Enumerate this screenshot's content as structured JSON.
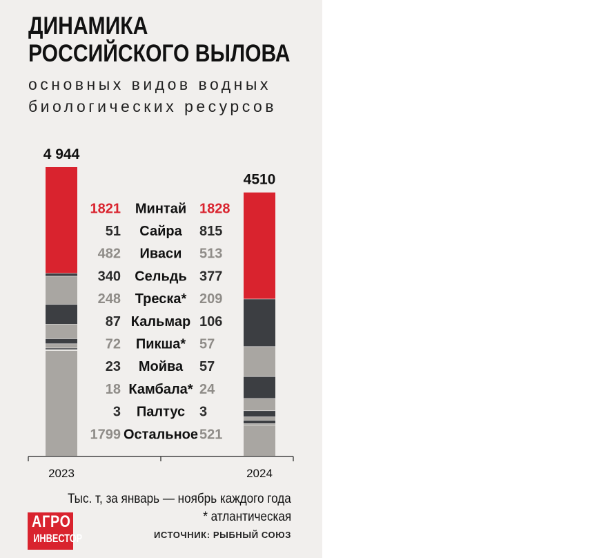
{
  "chart_data": {
    "type": "bar",
    "stacked": true,
    "title": "ДИНАМИКА РОССИЙСКОГО ВЫЛОВА",
    "title_lines": [
      "ДИНАМИКА",
      "РОССИЙСКОГО ВЫЛОВА"
    ],
    "subtitle": "основных видов водных биологических ресурсов",
    "subtitle_lines": [
      "основных видов водных",
      "биологических ресурсов"
    ],
    "categories": [
      "2023",
      "2024"
    ],
    "totals": [
      "4 944",
      "4510"
    ],
    "total_values": [
      4944,
      4510
    ],
    "series": [
      {
        "name": "Минтай",
        "values": [
          1821,
          1828
        ],
        "labels": [
          "1821",
          "1828"
        ],
        "color": "#d9232e",
        "label_color": "#d9232e"
      },
      {
        "name": "Сайра",
        "values": [
          51,
          815
        ],
        "labels": [
          "51",
          "815"
        ],
        "color": "#3c3e42",
        "label_color": "#2b2b2b"
      },
      {
        "name": "Иваси",
        "values": [
          482,
          513
        ],
        "labels": [
          "482",
          "513"
        ],
        "color": "#a9a6a2",
        "label_color": "#8f8c88"
      },
      {
        "name": "Сельдь",
        "values": [
          340,
          377
        ],
        "labels": [
          "340",
          "377"
        ],
        "color": "#3c3e42",
        "label_color": "#2b2b2b"
      },
      {
        "name": "Треска*",
        "values": [
          248,
          209
        ],
        "labels": [
          "248",
          "209"
        ],
        "color": "#a9a6a2",
        "label_color": "#8f8c88"
      },
      {
        "name": "Кальмар",
        "values": [
          87,
          106
        ],
        "labels": [
          "87",
          "106"
        ],
        "color": "#3c3e42",
        "label_color": "#2b2b2b"
      },
      {
        "name": "Пикша*",
        "values": [
          72,
          57
        ],
        "labels": [
          "72",
          "57"
        ],
        "color": "#a9a6a2",
        "label_color": "#8f8c88"
      },
      {
        "name": "Мойва",
        "values": [
          23,
          57
        ],
        "labels": [
          "23",
          "57"
        ],
        "color": "#3c3e42",
        "label_color": "#2b2b2b"
      },
      {
        "name": "Камбала*",
        "values": [
          18,
          24
        ],
        "labels": [
          "18",
          "24"
        ],
        "color": "#a9a6a2",
        "label_color": "#8f8c88"
      },
      {
        "name": "Палтус",
        "values": [
          3,
          3
        ],
        "labels": [
          "3",
          "3"
        ],
        "color": "#3c3e42",
        "label_color": "#2b2b2b"
      },
      {
        "name": "Остальное",
        "values": [
          1799,
          521
        ],
        "labels": [
          "1799",
          "521"
        ],
        "color": "#a9a6a2",
        "label_color": "#8f8c88"
      }
    ],
    "unit_note": "Тыс. т, за январь — ноябрь каждого года",
    "footnote": "* атлантическая",
    "source": "ИСТОЧНИК: РЫБНЫЙ СОЮЗ",
    "legend_placement": "center, between bars",
    "grid": false
  },
  "logo": {
    "line1": "АГРО",
    "line2": "ИНВЕСТОР"
  }
}
